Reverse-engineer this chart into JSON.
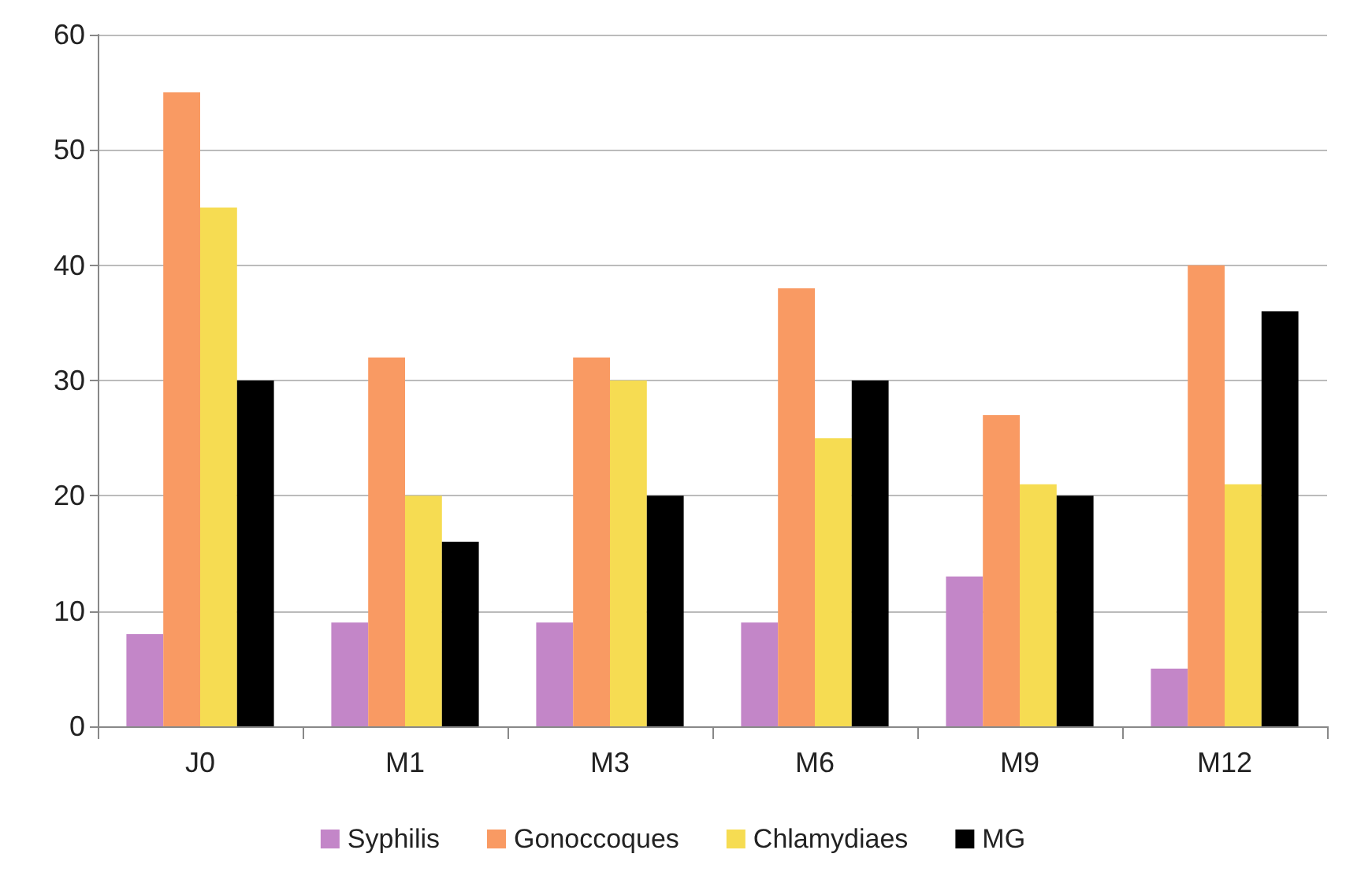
{
  "chart_data": {
    "type": "bar",
    "categories": [
      "J0",
      "M1",
      "M3",
      "M6",
      "M9",
      "M12"
    ],
    "series": [
      {
        "name": "Syphilis",
        "color": "#c386c8",
        "values": [
          8,
          9,
          9,
          9,
          13,
          5
        ]
      },
      {
        "name": "Gonoccoques",
        "color": "#f99a63",
        "values": [
          55,
          32,
          32,
          38,
          27,
          40
        ]
      },
      {
        "name": "Chlamydiaes",
        "color": "#f6dc52",
        "values": [
          45,
          20,
          30,
          25,
          21,
          21
        ]
      },
      {
        "name": "MG",
        "color": "#000000",
        "values": [
          30,
          16,
          20,
          30,
          20,
          36
        ]
      }
    ],
    "ylim": [
      0,
      60
    ],
    "yticks": [
      0,
      10,
      20,
      30,
      40,
      50,
      60
    ],
    "grid": "y",
    "legend": "bottom"
  }
}
